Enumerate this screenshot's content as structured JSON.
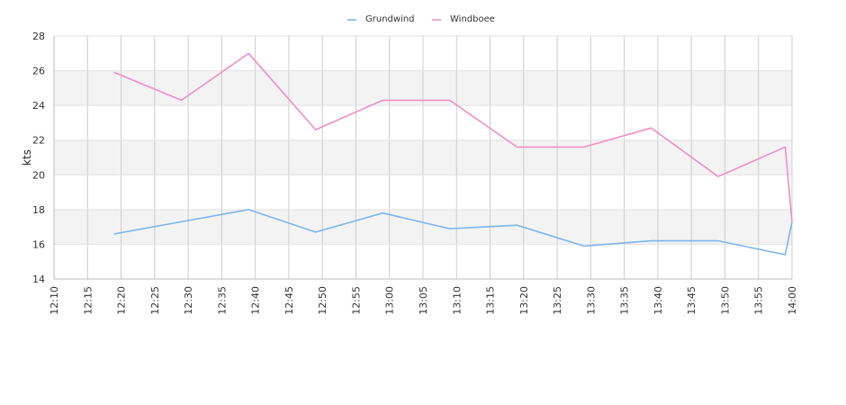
{
  "chart_data": {
    "type": "line",
    "ylabel": "kts",
    "ylim": [
      14,
      28
    ],
    "yticks": [
      14,
      16,
      18,
      20,
      22,
      24,
      26,
      28
    ],
    "xlim": [
      "12:10",
      "14:00"
    ],
    "xticks": [
      "12:10",
      "12:15",
      "12:20",
      "12:25",
      "12:30",
      "12:35",
      "12:40",
      "12:45",
      "12:50",
      "12:55",
      "13:00",
      "13:05",
      "13:10",
      "13:15",
      "13:20",
      "13:25",
      "13:30",
      "13:35",
      "13:40",
      "13:45",
      "13:50",
      "13:55",
      "14:00"
    ],
    "grid": true,
    "legend_position": "top-center",
    "series": [
      {
        "name": "Grundwind",
        "color": "#7cb5ec",
        "points": [
          {
            "x": "12:19",
            "y": 16.6
          },
          {
            "x": "12:29",
            "y": 17.3
          },
          {
            "x": "12:39",
            "y": 18.0
          },
          {
            "x": "12:49",
            "y": 16.7
          },
          {
            "x": "12:59",
            "y": 17.8
          },
          {
            "x": "13:09",
            "y": 16.9
          },
          {
            "x": "13:19",
            "y": 17.1
          },
          {
            "x": "13:29",
            "y": 15.9
          },
          {
            "x": "13:39",
            "y": 16.2
          },
          {
            "x": "13:49",
            "y": 16.2
          },
          {
            "x": "13:59",
            "y": 15.4
          },
          {
            "x": "14:00",
            "y": 17.3
          }
        ]
      },
      {
        "name": "Windboee",
        "color": "#f08fc1",
        "points": [
          {
            "x": "12:19",
            "y": 25.9
          },
          {
            "x": "12:29",
            "y": 24.3
          },
          {
            "x": "12:39",
            "y": 27.0
          },
          {
            "x": "12:49",
            "y": 22.6
          },
          {
            "x": "12:59",
            "y": 24.3
          },
          {
            "x": "13:09",
            "y": 24.3
          },
          {
            "x": "13:19",
            "y": 21.6
          },
          {
            "x": "13:29",
            "y": 21.6
          },
          {
            "x": "13:39",
            "y": 22.7
          },
          {
            "x": "13:49",
            "y": 19.9
          },
          {
            "x": "13:59",
            "y": 21.6
          },
          {
            "x": "14:00",
            "y": 17.3
          }
        ]
      }
    ]
  }
}
